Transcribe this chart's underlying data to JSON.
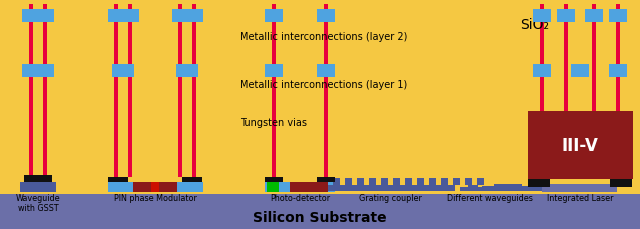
{
  "bg_color": "#F5C842",
  "substrate_color": "#6B6FA8",
  "blue_metal": "#4FA3E0",
  "red_via": "#E8003D",
  "black": "#111111",
  "dark_red": "#8B1A1A",
  "dark_blue_wg": "#4A5A9A",
  "green": "#00BB00",
  "sio2_label": "SiO₂",
  "substrate_label": "Silicon Substrate",
  "annot_layer2": "Metallic interconnections (layer 2)",
  "annot_layer1": "Metallic interconnections (layer 1)",
  "annot_tungsten": "Tungsten vias",
  "annot_iiiv": "III-V",
  "fig_w": 6.4,
  "fig_h": 2.3,
  "dpi": 100
}
